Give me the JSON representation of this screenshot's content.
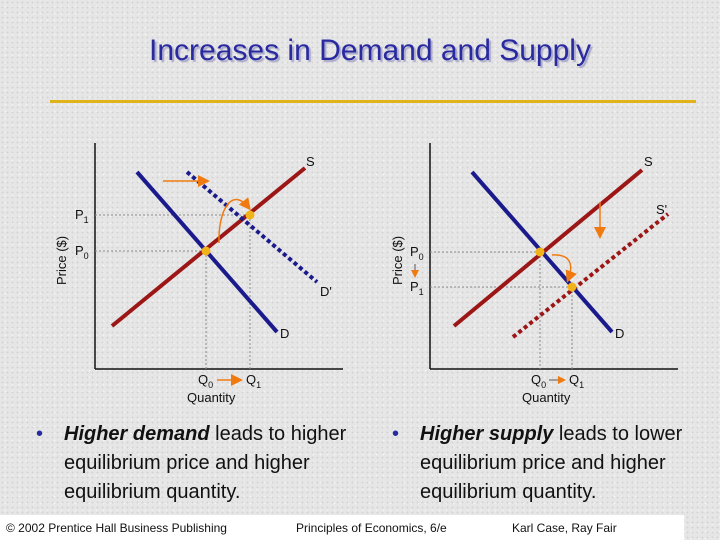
{
  "slide": {
    "title": "Increases in Demand and Supply"
  },
  "diagram_left": {
    "y_axis_label": "Price ($)",
    "x_axis_label": "Quantity",
    "price_labels": [
      {
        "base": "P",
        "sub": "1"
      },
      {
        "base": "P",
        "sub": "0"
      }
    ],
    "quantity_labels": [
      {
        "base": "Q",
        "sub": "0"
      },
      {
        "base": "Q",
        "sub": "1"
      }
    ],
    "curve_labels": {
      "supply": "S",
      "demand": "D",
      "demand_shifted": "D'"
    }
  },
  "diagram_right": {
    "y_axis_label": "Price ($)",
    "x_axis_label": "Quantity",
    "price_labels": [
      {
        "base": "P",
        "sub": "0"
      },
      {
        "base": "P",
        "sub": "1"
      }
    ],
    "quantity_labels": [
      {
        "base": "Q",
        "sub": "0"
      },
      {
        "base": "Q",
        "sub": "1"
      }
    ],
    "curve_labels": {
      "supply": "S",
      "supply_shifted": "S'",
      "demand": "D"
    }
  },
  "bullets": [
    {
      "bullet": "•",
      "emph": "Higher demand",
      "rest": " leads to higher equilibrium price and higher equilibrium quantity."
    },
    {
      "bullet": "•",
      "emph": "Higher supply",
      "rest": " leads to lower equilibrium price and higher equilibrium quantity."
    }
  ],
  "footer": {
    "copyright": "© 2002 Prentice Hall Business Publishing",
    "book": "Principles of Economics, 6/e",
    "authors": "Karl Case, Ray Fair"
  },
  "colors": {
    "supply": "#9c1616",
    "demand": "#1a1a8c",
    "equilibrium": "#f2b21a",
    "arrow": "#f07a10",
    "title": "#2a2aa0"
  }
}
